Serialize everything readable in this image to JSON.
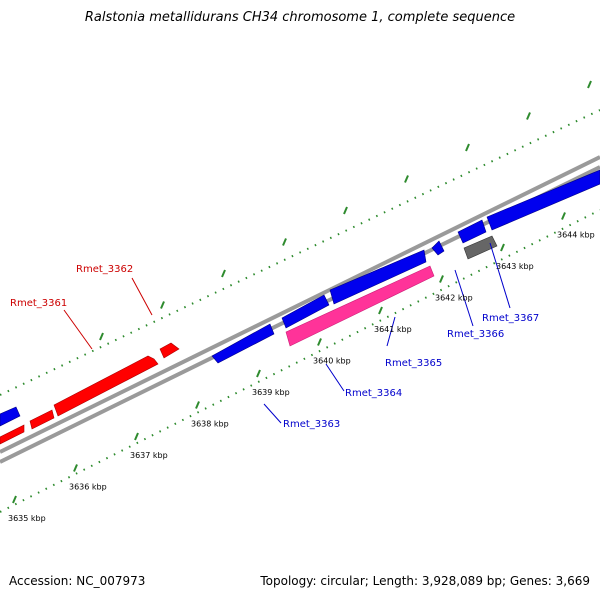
{
  "title": "Ralstonia metallidurans CH34 chromosome 1, complete sequence",
  "footer": {
    "accession": "Accession: NC_007973",
    "summary": "Topology: circular; Length: 3,928,089 bp; Genes: 3,669"
  },
  "colors": {
    "forward_gene": "#ff0000",
    "reverse_gene": "#0000ee",
    "highlight_gene": "#ff3399",
    "other_feature": "#666666",
    "backbone": "#999999",
    "tick": "#2e8b2e",
    "label_forward": "#cc0000",
    "label_reverse": "#0000cc"
  },
  "ticks": [
    {
      "kbp": 3635,
      "label": "3635 kbp"
    },
    {
      "kbp": 3636,
      "label": "3636 kbp"
    },
    {
      "kbp": 3637,
      "label": "3637 kbp"
    },
    {
      "kbp": 3638,
      "label": "3638 kbp"
    },
    {
      "kbp": 3639,
      "label": "3639 kbp"
    },
    {
      "kbp": 3640,
      "label": "3640 kbp"
    },
    {
      "kbp": 3641,
      "label": "3641 kbp"
    },
    {
      "kbp": 3642,
      "label": "3642 kbp"
    },
    {
      "kbp": 3643,
      "label": "3643 kbp"
    },
    {
      "kbp": 3644,
      "label": "3644 kbp"
    }
  ],
  "gene_labels": {
    "rmet_3361": "Rmet_3361",
    "rmet_3362": "Rmet_3362",
    "rmet_3363": "Rmet_3363",
    "rmet_3364": "Rmet_3364",
    "rmet_3365": "Rmet_3365",
    "rmet_3366": "Rmet_3366",
    "rmet_3367": "Rmet_3367"
  }
}
